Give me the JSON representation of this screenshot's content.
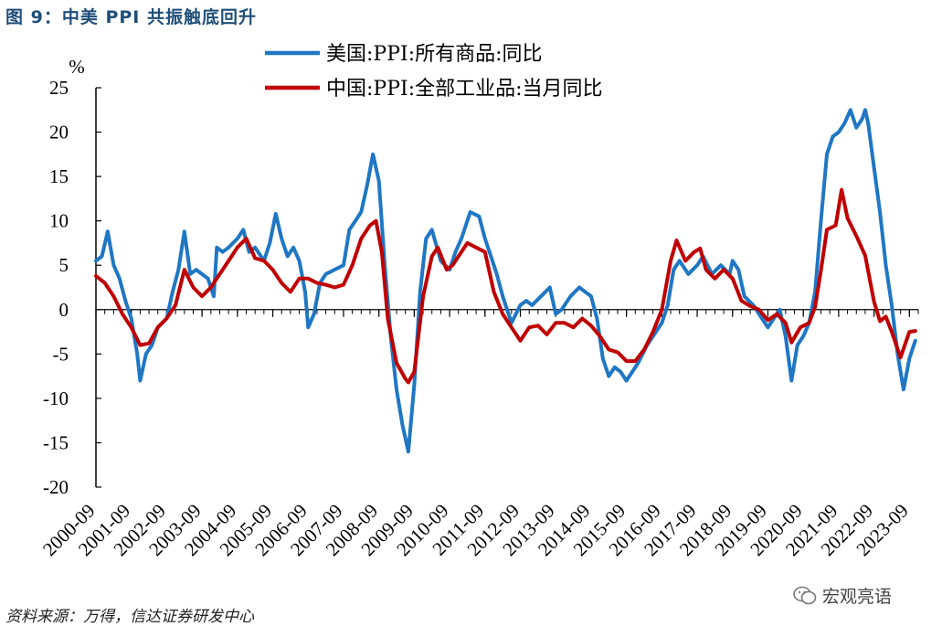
{
  "figure": {
    "title": "图 9：中美 PPI 共振触底回升",
    "source": "资料来源：万得，信达证券研发中心",
    "watermark": "宏观亮语"
  },
  "colors": {
    "us": "#1f77c4",
    "cn": "#c00000",
    "axis": "#000000"
  },
  "chart_data": {
    "type": "line",
    "y_unit": "%",
    "ylim": [
      -20,
      25
    ],
    "y_ticks": [
      25,
      20,
      15,
      10,
      5,
      0,
      -5,
      -10,
      -15,
      -20
    ],
    "xlim": [
      "2000-09",
      "2023-12"
    ],
    "x_ticks": [
      "2000-09",
      "2001-09",
      "2002-09",
      "2003-09",
      "2004-09",
      "2005-09",
      "2006-09",
      "2007-09",
      "2008-09",
      "2009-09",
      "2010-09",
      "2011-09",
      "2012-09",
      "2013-09",
      "2014-09",
      "2015-09",
      "2016-09",
      "2017-09",
      "2018-09",
      "2019-09",
      "2020-09",
      "2021-09",
      "2022-09",
      "2023-09"
    ],
    "grid": false,
    "legend_position": "top-center",
    "series": [
      {
        "name": "美国:PPI:所有商品:同比",
        "color_key": "us",
        "points": [
          [
            "2000-09",
            5.5
          ],
          [
            "2000-11",
            6.0
          ],
          [
            "2001-01",
            8.8
          ],
          [
            "2001-03",
            5.0
          ],
          [
            "2001-05",
            3.5
          ],
          [
            "2001-07",
            1.0
          ],
          [
            "2001-09",
            -1.0
          ],
          [
            "2001-11",
            -5.0
          ],
          [
            "2001-12",
            -8.0
          ],
          [
            "2002-02",
            -5.0
          ],
          [
            "2002-04",
            -4.0
          ],
          [
            "2002-06",
            -2.0
          ],
          [
            "2002-09",
            -1.0
          ],
          [
            "2002-11",
            2.0
          ],
          [
            "2003-01",
            4.5
          ],
          [
            "2003-03",
            8.8
          ],
          [
            "2003-05",
            4.0
          ],
          [
            "2003-07",
            4.5
          ],
          [
            "2003-09",
            4.0
          ],
          [
            "2003-11",
            3.5
          ],
          [
            "2004-01",
            1.5
          ],
          [
            "2004-02",
            7.0
          ],
          [
            "2004-04",
            6.5
          ],
          [
            "2004-06",
            7.0
          ],
          [
            "2004-09",
            8.0
          ],
          [
            "2004-11",
            9.0
          ],
          [
            "2005-01",
            6.5
          ],
          [
            "2005-03",
            7.0
          ],
          [
            "2005-06",
            5.5
          ],
          [
            "2005-08",
            7.5
          ],
          [
            "2005-10",
            10.8
          ],
          [
            "2005-12",
            8.0
          ],
          [
            "2006-02",
            6.0
          ],
          [
            "2006-04",
            7.0
          ],
          [
            "2006-06",
            5.5
          ],
          [
            "2006-08",
            2.0
          ],
          [
            "2006-09",
            -2.0
          ],
          [
            "2006-11",
            -0.5
          ],
          [
            "2007-01",
            3.0
          ],
          [
            "2007-03",
            4.0
          ],
          [
            "2007-06",
            4.5
          ],
          [
            "2007-09",
            5.0
          ],
          [
            "2007-11",
            9.0
          ],
          [
            "2008-01",
            10.0
          ],
          [
            "2008-03",
            11.0
          ],
          [
            "2008-05",
            14.0
          ],
          [
            "2008-07",
            17.5
          ],
          [
            "2008-09",
            14.5
          ],
          [
            "2008-11",
            5.0
          ],
          [
            "2009-01",
            -3.0
          ],
          [
            "2009-03",
            -9.0
          ],
          [
            "2009-05",
            -13.0
          ],
          [
            "2009-07",
            -16.0
          ],
          [
            "2009-09",
            -8.5
          ],
          [
            "2009-11",
            2.0
          ],
          [
            "2010-01",
            8.0
          ],
          [
            "2010-03",
            9.0
          ],
          [
            "2010-06",
            5.5
          ],
          [
            "2010-09",
            4.5
          ],
          [
            "2010-11",
            6.5
          ],
          [
            "2011-01",
            8.0
          ],
          [
            "2011-04",
            11.0
          ],
          [
            "2011-07",
            10.5
          ],
          [
            "2011-09",
            8.0
          ],
          [
            "2011-11",
            6.0
          ],
          [
            "2012-01",
            4.0
          ],
          [
            "2012-03",
            1.5
          ],
          [
            "2012-06",
            -1.5
          ],
          [
            "2012-09",
            0.5
          ],
          [
            "2012-11",
            1.0
          ],
          [
            "2013-01",
            0.5
          ],
          [
            "2013-04",
            1.5
          ],
          [
            "2013-07",
            2.5
          ],
          [
            "2013-09",
            -0.5
          ],
          [
            "2013-11",
            0.0
          ],
          [
            "2014-02",
            1.5
          ],
          [
            "2014-05",
            2.5
          ],
          [
            "2014-09",
            1.5
          ],
          [
            "2014-11",
            -1.0
          ],
          [
            "2015-01",
            -5.5
          ],
          [
            "2015-03",
            -7.5
          ],
          [
            "2015-05",
            -6.5
          ],
          [
            "2015-07",
            -7.0
          ],
          [
            "2015-09",
            -8.0
          ],
          [
            "2015-11",
            -7.0
          ],
          [
            "2016-01",
            -6.0
          ],
          [
            "2016-04",
            -4.0
          ],
          [
            "2016-07",
            -2.5
          ],
          [
            "2016-09",
            -1.5
          ],
          [
            "2016-11",
            0.5
          ],
          [
            "2017-01",
            4.5
          ],
          [
            "2017-03",
            5.5
          ],
          [
            "2017-06",
            4.0
          ],
          [
            "2017-09",
            5.0
          ],
          [
            "2017-11",
            6.0
          ],
          [
            "2018-02",
            4.0
          ],
          [
            "2018-05",
            5.0
          ],
          [
            "2018-08",
            4.0
          ],
          [
            "2018-09",
            5.5
          ],
          [
            "2018-11",
            4.5
          ],
          [
            "2019-01",
            1.5
          ],
          [
            "2019-04",
            0.5
          ],
          [
            "2019-07",
            -1.0
          ],
          [
            "2019-09",
            -2.0
          ],
          [
            "2019-11",
            -1.0
          ],
          [
            "2020-01",
            0.0
          ],
          [
            "2020-03",
            -3.0
          ],
          [
            "2020-05",
            -8.0
          ],
          [
            "2020-07",
            -4.0
          ],
          [
            "2020-09",
            -3.0
          ],
          [
            "2020-11",
            -1.5
          ],
          [
            "2021-01",
            2.0
          ],
          [
            "2021-03",
            10.0
          ],
          [
            "2021-05",
            17.5
          ],
          [
            "2021-07",
            19.5
          ],
          [
            "2021-09",
            20.0
          ],
          [
            "2021-11",
            21.0
          ],
          [
            "2022-01",
            22.5
          ],
          [
            "2022-03",
            20.5
          ],
          [
            "2022-05",
            21.5
          ],
          [
            "2022-06",
            22.5
          ],
          [
            "2022-07",
            21.0
          ],
          [
            "2022-09",
            16.0
          ],
          [
            "2022-11",
            11.0
          ],
          [
            "2023-01",
            5.0
          ],
          [
            "2023-03",
            0.5
          ],
          [
            "2023-05",
            -5.0
          ],
          [
            "2023-07",
            -9.0
          ],
          [
            "2023-09",
            -5.5
          ],
          [
            "2023-11",
            -3.5
          ]
        ]
      },
      {
        "name": "中国:PPI:全部工业品:当月同比",
        "color_key": "cn",
        "points": [
          [
            "2000-09",
            3.8
          ],
          [
            "2000-12",
            3.0
          ],
          [
            "2001-03",
            1.5
          ],
          [
            "2001-06",
            -0.5
          ],
          [
            "2001-09",
            -2.0
          ],
          [
            "2001-12",
            -4.0
          ],
          [
            "2002-03",
            -3.8
          ],
          [
            "2002-06",
            -2.0
          ],
          [
            "2002-09",
            -1.0
          ],
          [
            "2002-12",
            0.5
          ],
          [
            "2003-03",
            4.5
          ],
          [
            "2003-06",
            2.5
          ],
          [
            "2003-09",
            1.5
          ],
          [
            "2003-12",
            2.5
          ],
          [
            "2004-03",
            4.0
          ],
          [
            "2004-06",
            5.5
          ],
          [
            "2004-09",
            7.0
          ],
          [
            "2004-12",
            8.0
          ],
          [
            "2005-03",
            5.8
          ],
          [
            "2005-06",
            5.5
          ],
          [
            "2005-09",
            4.5
          ],
          [
            "2005-12",
            3.0
          ],
          [
            "2006-03",
            2.0
          ],
          [
            "2006-06",
            3.5
          ],
          [
            "2006-09",
            3.5
          ],
          [
            "2006-12",
            3.0
          ],
          [
            "2007-03",
            2.8
          ],
          [
            "2007-06",
            2.5
          ],
          [
            "2007-09",
            2.8
          ],
          [
            "2007-12",
            5.0
          ],
          [
            "2008-03",
            8.0
          ],
          [
            "2008-06",
            9.5
          ],
          [
            "2008-08",
            10.0
          ],
          [
            "2008-10",
            6.5
          ],
          [
            "2008-12",
            -1.0
          ],
          [
            "2009-03",
            -6.0
          ],
          [
            "2009-06",
            -7.8
          ],
          [
            "2009-07",
            -8.2
          ],
          [
            "2009-09",
            -7.0
          ],
          [
            "2009-12",
            1.5
          ],
          [
            "2010-03",
            6.0
          ],
          [
            "2010-05",
            7.0
          ],
          [
            "2010-08",
            4.5
          ],
          [
            "2010-10",
            5.0
          ],
          [
            "2010-12",
            6.0
          ],
          [
            "2011-03",
            7.5
          ],
          [
            "2011-06",
            7.0
          ],
          [
            "2011-09",
            6.5
          ],
          [
            "2011-12",
            2.0
          ],
          [
            "2012-03",
            -0.5
          ],
          [
            "2012-06",
            -2.0
          ],
          [
            "2012-09",
            -3.5
          ],
          [
            "2012-12",
            -2.0
          ],
          [
            "2013-03",
            -1.8
          ],
          [
            "2013-06",
            -2.8
          ],
          [
            "2013-09",
            -1.5
          ],
          [
            "2013-12",
            -1.5
          ],
          [
            "2014-03",
            -2.0
          ],
          [
            "2014-06",
            -1.0
          ],
          [
            "2014-09",
            -1.8
          ],
          [
            "2014-12",
            -3.0
          ],
          [
            "2015-03",
            -4.5
          ],
          [
            "2015-06",
            -4.8
          ],
          [
            "2015-09",
            -5.8
          ],
          [
            "2015-12",
            -5.8
          ],
          [
            "2016-03",
            -4.5
          ],
          [
            "2016-06",
            -2.5
          ],
          [
            "2016-09",
            0.0
          ],
          [
            "2016-12",
            5.5
          ],
          [
            "2017-02",
            7.8
          ],
          [
            "2017-05",
            5.5
          ],
          [
            "2017-08",
            6.5
          ],
          [
            "2017-10",
            6.9
          ],
          [
            "2017-12",
            4.5
          ],
          [
            "2018-03",
            3.5
          ],
          [
            "2018-06",
            4.5
          ],
          [
            "2018-09",
            3.5
          ],
          [
            "2018-12",
            1.0
          ],
          [
            "2019-03",
            0.4
          ],
          [
            "2019-06",
            0.0
          ],
          [
            "2019-09",
            -1.2
          ],
          [
            "2019-12",
            -0.5
          ],
          [
            "2020-03",
            -1.5
          ],
          [
            "2020-05",
            -3.7
          ],
          [
            "2020-08",
            -2.0
          ],
          [
            "2020-11",
            -1.5
          ],
          [
            "2021-01",
            0.3
          ],
          [
            "2021-03",
            4.4
          ],
          [
            "2021-05",
            9.0
          ],
          [
            "2021-08",
            9.5
          ],
          [
            "2021-10",
            13.5
          ],
          [
            "2021-12",
            10.3
          ],
          [
            "2022-03",
            8.3
          ],
          [
            "2022-06",
            6.1
          ],
          [
            "2022-09",
            0.9
          ],
          [
            "2022-11",
            -1.3
          ],
          [
            "2023-01",
            -0.8
          ],
          [
            "2023-03",
            -2.5
          ],
          [
            "2023-06",
            -5.4
          ],
          [
            "2023-09",
            -2.5
          ],
          [
            "2023-11",
            -2.4
          ]
        ]
      }
    ]
  }
}
